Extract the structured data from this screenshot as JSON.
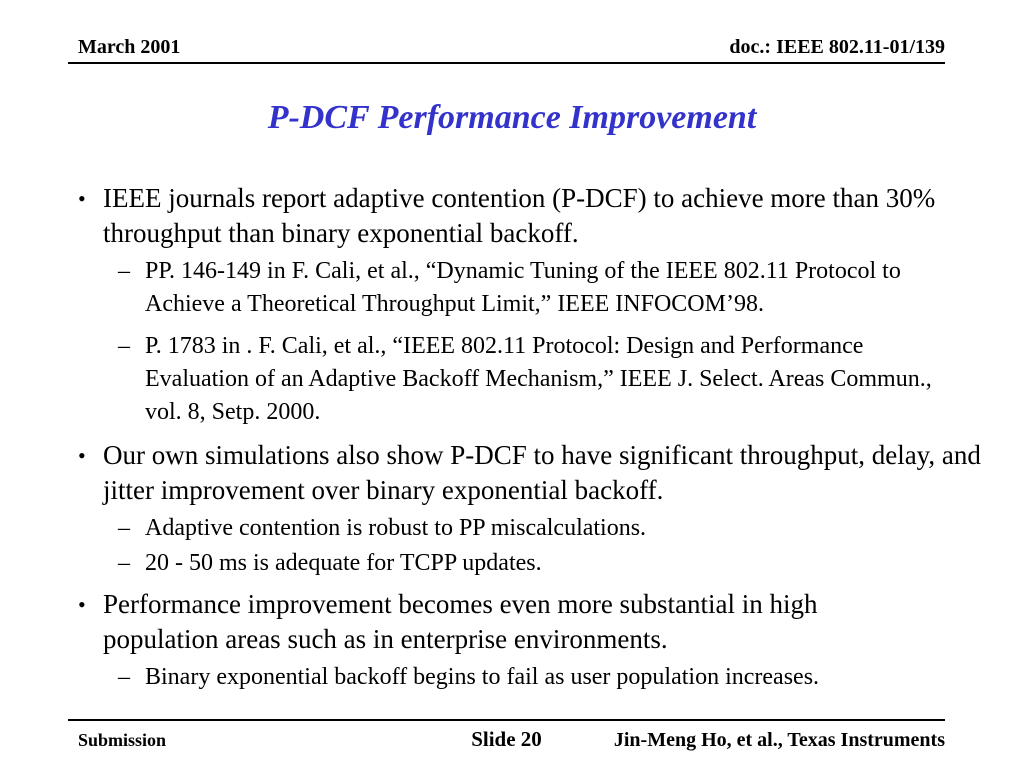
{
  "header": {
    "left": "March 2001",
    "right": "doc.: IEEE 802.11-01/139"
  },
  "title": {
    "text": "P-DCF Performance Improvement",
    "color": "#3333CC"
  },
  "glyphs": {
    "bullet": "•",
    "dash": "–"
  },
  "content": [
    {
      "text": "IEEE journals report adaptive contention (P-DCF) to achieve more than 30% throughput than binary exponential backoff.",
      "subs": [
        "PP. 146-149 in F. Cali, et al., “Dynamic Tuning of the IEEE 802.11 Protocol to Achieve a Theoretical Throughput Limit,” IEEE INFOCOM’98.",
        "P. 1783 in . F. Cali, et al., “IEEE 802.11 Protocol: Design and Performance Evaluation of an Adaptive Backoff Mechanism,” IEEE J. Select. Areas Commun., vol. 8, Setp. 2000."
      ]
    },
    {
      "text": "Our own simulations also show P-DCF to have significant throughput, delay, and jitter improvement over binary exponential backoff.",
      "subs": [
        "Adaptive contention is robust to PP miscalculations.",
        "20 - 50 ms is adequate for TCPP updates."
      ]
    },
    {
      "text": "Performance improvement becomes even more substantial in high population areas such as in enterprise environments.",
      "subs": [
        "Binary exponential backoff begins to fail as user population increases."
      ]
    }
  ],
  "footer": {
    "left": "Submission",
    "center": "Slide 20",
    "right": "Jin-Meng Ho, et al., Texas Instruments"
  }
}
